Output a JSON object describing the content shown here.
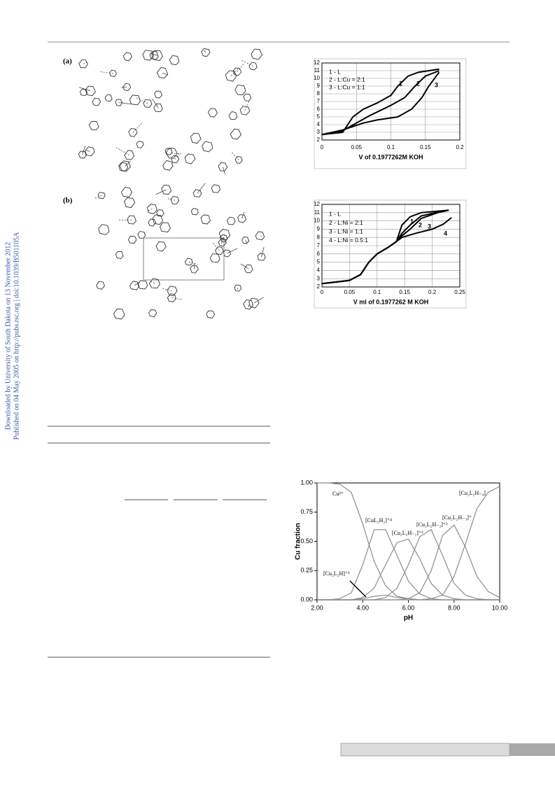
{
  "sidebar": {
    "line1": "Downloaded by University of South Dakota on 13 November 2012",
    "line2": "Published on 04 May 2005 on http://pubs.rsc.org | doi:10.1039/B501105A"
  },
  "figure_labels": [
    "(a)",
    "(b)"
  ],
  "chart_data": [
    {
      "type": "line",
      "xlabel": "V of 0.1977262M KOH",
      "xlim": [
        0,
        0.2
      ],
      "ylim": [
        2,
        12
      ],
      "xticks": [
        0,
        0.05,
        0.1,
        0.15,
        0.2
      ],
      "yticks": [
        2,
        3,
        4,
        5,
        6,
        7,
        8,
        9,
        10,
        11,
        12
      ],
      "grid": true,
      "series": [
        {
          "name": "1 - L",
          "color": "#000000",
          "x": [
            0,
            0.03,
            0.045,
            0.06,
            0.08,
            0.1,
            0.11,
            0.125,
            0.14,
            0.17
          ],
          "values": [
            2.7,
            3,
            5,
            6,
            6.8,
            7.8,
            9,
            10.3,
            10.8,
            11.2
          ]
        },
        {
          "name": "2 - L:Cu = 2:1",
          "color": "#000000",
          "x": [
            0,
            0.03,
            0.05,
            0.07,
            0.1,
            0.12,
            0.135,
            0.15,
            0.17
          ],
          "values": [
            2.7,
            3.2,
            4.2,
            5.2,
            6.5,
            7.5,
            9,
            10.3,
            11
          ]
        },
        {
          "name": "3 - L:Cu = 1:1",
          "color": "#000000",
          "x": [
            0,
            0.03,
            0.06,
            0.08,
            0.11,
            0.13,
            0.145,
            0.155,
            0.165,
            0.17
          ],
          "values": [
            2.7,
            3.3,
            4.2,
            4.6,
            5,
            6,
            7.5,
            9,
            10.2,
            10.8
          ]
        }
      ],
      "curve_labels": [
        "1",
        "2",
        "3"
      ]
    },
    {
      "type": "line",
      "xlabel": "V ml of 0.1977262 M KOH",
      "xlim": [
        0,
        0.25
      ],
      "ylim": [
        2,
        12
      ],
      "xticks": [
        0,
        0.05,
        0.1,
        0.15,
        0.2,
        0.25
      ],
      "yticks": [
        2,
        3,
        4,
        5,
        6,
        7,
        8,
        9,
        10,
        11,
        12
      ],
      "grid": true,
      "series": [
        {
          "name": "1 - L",
          "color": "#000000",
          "x": [
            0,
            0.05,
            0.07,
            0.085,
            0.1,
            0.12,
            0.135,
            0.145,
            0.16,
            0.18,
            0.23
          ],
          "values": [
            2.4,
            2.8,
            3.5,
            5,
            6,
            6.8,
            7.5,
            9.5,
            10.5,
            11,
            11.3
          ]
        },
        {
          "name": "2 - L:Ni = 2:1",
          "color": "#000000",
          "x": [
            0,
            0.05,
            0.07,
            0.085,
            0.1,
            0.12,
            0.135,
            0.145,
            0.16,
            0.18,
            0.22
          ],
          "values": [
            2.4,
            2.8,
            3.5,
            5,
            6,
            6.8,
            7.5,
            8.5,
            9.5,
            10.6,
            11.2
          ]
        },
        {
          "name": "3 - L:Ni = 1:1",
          "color": "#000000",
          "x": [
            0,
            0.05,
            0.07,
            0.085,
            0.1,
            0.12,
            0.135,
            0.145,
            0.16,
            0.18,
            0.21,
            0.23
          ],
          "values": [
            2.4,
            2.8,
            3.5,
            5,
            6,
            6.8,
            7.5,
            8.2,
            9,
            10.3,
            11,
            11.3
          ]
        },
        {
          "name": "4 - L:Ni = 0.5:1",
          "color": "#000000",
          "x": [
            0,
            0.05,
            0.07,
            0.085,
            0.1,
            0.12,
            0.135,
            0.145,
            0.17,
            0.2,
            0.22,
            0.235
          ],
          "values": [
            2.4,
            2.8,
            3.5,
            5,
            6,
            6.8,
            7.5,
            8,
            8.5,
            9,
            9.6,
            10.4
          ]
        }
      ],
      "curve_labels": [
        "1",
        "2",
        "3",
        "4"
      ]
    },
    {
      "type": "line",
      "xlabel": "pH",
      "ylabel": "Cu fraction",
      "xlim": [
        2,
        10
      ],
      "ylim": [
        0,
        1
      ],
      "grid": false,
      "xticks": [
        {
          "value": 2,
          "label": "2.00"
        },
        {
          "value": 4,
          "label": "4.00"
        },
        {
          "value": 6,
          "label": "6.00"
        },
        {
          "value": 8,
          "label": "8.00"
        },
        {
          "value": 10,
          "label": "10.00"
        }
      ],
      "yticks": [
        {
          "value": 0,
          "label": "0.00"
        },
        {
          "value": 0.25,
          "label": "0.25"
        },
        {
          "value": 0.5,
          "label": "0.50"
        },
        {
          "value": 0.75,
          "label": "0.75"
        },
        {
          "value": 1,
          "label": "1.00"
        }
      ],
      "x": [
        2,
        2.5,
        3,
        3.5,
        4,
        4.5,
        5,
        5.5,
        6,
        6.5,
        7,
        7.5,
        8,
        8.5,
        9,
        9.5,
        10
      ],
      "series": [
        {
          "name": "Cu²⁺",
          "color": "#8c8c8c",
          "values": [
            1,
            1,
            0.99,
            0.92,
            0.65,
            0.33,
            0.12,
            0.03,
            0.01,
            0,
            0,
            0,
            0,
            0,
            0,
            0,
            0
          ]
        },
        {
          "name": "[CuL₂H₂]⁺⁴",
          "color": "#8c8c8c",
          "values": [
            0,
            0,
            0.01,
            0.06,
            0.3,
            0.6,
            0.6,
            0.38,
            0.16,
            0.05,
            0.01,
            0,
            0,
            0,
            0,
            0,
            0
          ]
        },
        {
          "name": "[Cu₂L₂H]⁺³",
          "color": "#8c8c8c",
          "values": [
            0,
            0,
            0,
            0,
            0.01,
            0.03,
            0.04,
            0.02,
            0.01,
            0,
            0,
            0,
            0,
            0,
            0,
            0,
            0
          ]
        },
        {
          "name": "[Cu₂L₂H₋₁]⁺³",
          "color": "#8c8c8c",
          "values": [
            0,
            0,
            0,
            0,
            0.02,
            0.1,
            0.3,
            0.49,
            0.52,
            0.35,
            0.14,
            0.04,
            0.01,
            0,
            0,
            0,
            0
          ]
        },
        {
          "name": "[Cu₂L₂H₋₂]⁺²",
          "color": "#8c8c8c",
          "values": [
            0,
            0,
            0,
            0,
            0,
            0,
            0.02,
            0.1,
            0.3,
            0.54,
            0.6,
            0.38,
            0.14,
            0.04,
            0.01,
            0,
            0
          ]
        },
        {
          "name": "[Cu₂L₂H₋₃]⁺",
          "color": "#8c8c8c",
          "values": [
            0,
            0,
            0,
            0,
            0,
            0,
            0,
            0,
            0.01,
            0.06,
            0.25,
            0.55,
            0.64,
            0.45,
            0.2,
            0.07,
            0.02
          ]
        },
        {
          "name": "[Cu₂L₂H₋₄]",
          "color": "#8c8c8c",
          "values": [
            0,
            0,
            0,
            0,
            0,
            0,
            0,
            0,
            0,
            0,
            0.01,
            0.04,
            0.2,
            0.48,
            0.78,
            0.92,
            0.97
          ]
        }
      ]
    }
  ]
}
